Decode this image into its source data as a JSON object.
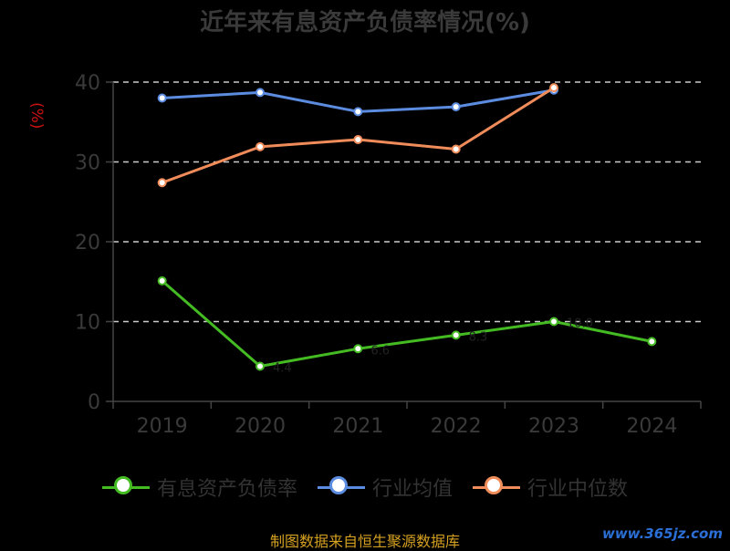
{
  "chart_data": {
    "type": "line",
    "title": "近年来有息资产负债率情况(%)",
    "ylabel": "(%)",
    "categories": [
      "2019",
      "2020",
      "2021",
      "2022",
      "2023",
      "2024"
    ],
    "yticks": [
      0,
      10,
      20,
      30,
      40
    ],
    "ylim": [
      0,
      40
    ],
    "grid": "horizontal dashed",
    "legend_position": "bottom",
    "series": [
      {
        "name": "有息资产负债率",
        "color": "#44bb22",
        "values": [
          15.1,
          4.4,
          6.6,
          8.3,
          10.0,
          7.5
        ],
        "labels": [
          "",
          "4.4",
          "6.6",
          "8.3",
          "10.0",
          ""
        ]
      },
      {
        "name": "行业均值",
        "color": "#5b8ce0",
        "values": [
          38.0,
          38.7,
          36.3,
          36.9,
          39.0,
          null
        ]
      },
      {
        "name": "行业中位数",
        "color": "#f08c5a",
        "values": [
          27.4,
          31.9,
          32.8,
          31.6,
          39.3,
          null
        ]
      }
    ]
  },
  "footer": {
    "source": "制图数据来自恒生聚源数据库",
    "watermark": "www.365jz.com"
  }
}
